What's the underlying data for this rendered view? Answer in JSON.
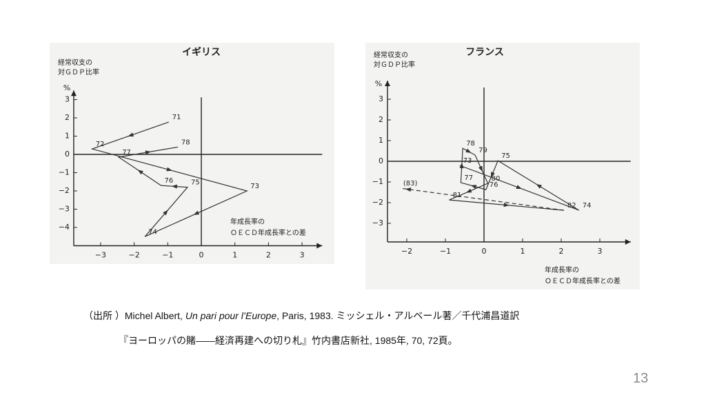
{
  "chart_data": [
    {
      "type": "line",
      "title": "イギリス",
      "y_label": [
        "経常収支の",
        "対ＧＤＰ比率"
      ],
      "y_unit": "%",
      "x_label": [
        "年成長率の",
        "ＯＥＣＤ年成長率との差"
      ],
      "xlim": [
        -3.8,
        3.6
      ],
      "ylim": [
        -5,
        3.5
      ],
      "xticks": [
        {
          "value": -3,
          "label": "−3"
        },
        {
          "value": -2,
          "label": "−2"
        },
        {
          "value": -1,
          "label": "−1"
        },
        0,
        1,
        2,
        3
      ],
      "yticks": [
        3,
        2,
        1,
        0,
        {
          "value": -1,
          "label": "−1"
        },
        {
          "value": -2,
          "label": "−2"
        },
        {
          "value": -3,
          "label": "−3"
        },
        {
          "value": -4,
          "label": "−4"
        }
      ],
      "series": [
        {
          "color": "#333333",
          "style": "solid",
          "point_labels": [
            "71",
            "72",
            "73",
            "74",
            "75",
            "76",
            "77",
            "78"
          ],
          "x": [
            -0.97,
            -3.25,
            1.36,
            -1.68,
            -0.41,
            -1.2,
            -2.46,
            -0.7
          ],
          "values": [
            1.77,
            0.3,
            -2.0,
            -4.5,
            -1.8,
            -1.7,
            -0.15,
            0.4
          ]
        }
      ]
    },
    {
      "type": "line",
      "title": "フランス",
      "y_label": [
        "経常収支の",
        "対ＧＤＰ比率"
      ],
      "y_unit": "%",
      "x_label": [
        "年成長率の",
        "ＯＥＣＤ年成長率との差"
      ],
      "xlim": [
        -2.5,
        3.8
      ],
      "ylim": [
        -3.9,
        3.9
      ],
      "xticks": [
        {
          "value": -2,
          "label": "−2"
        },
        {
          "value": -1,
          "label": "−1"
        },
        0,
        1,
        2,
        3
      ],
      "yticks": [
        3,
        2,
        1,
        0,
        {
          "value": -1,
          "label": "−1"
        },
        {
          "value": -2,
          "label": "−2"
        },
        {
          "value": -3,
          "label": "−3"
        }
      ],
      "series": [
        {
          "color": "#333333",
          "style": "solid",
          "point_labels": [
            "73",
            "74",
            "75",
            "76",
            "77",
            "78",
            "79",
            "80",
            "81",
            "82"
          ],
          "x": [
            -0.63,
            2.46,
            0.36,
            0.05,
            -0.6,
            -0.55,
            -0.23,
            0.1,
            -0.9,
            2.07
          ],
          "values": [
            -0.2,
            -2.37,
            0.03,
            -1.37,
            -1.03,
            0.63,
            0.3,
            -1.07,
            -1.87,
            -2.37
          ]
        },
        {
          "color": "#333333",
          "style": "dashed",
          "point_labels": [
            null,
            "(83)"
          ],
          "x": [
            2.07,
            -2.18
          ],
          "values": [
            -2.37,
            -1.3
          ]
        }
      ]
    }
  ],
  "footer": {
    "line1": {
      "source": "（出所 ）Michel Albert, ",
      "book": "Un pari pour l’Europe",
      "rest": ", Paris, 1983. ミッシェル・アルベール著／千代浦昌道訳"
    },
    "line2": "『ヨーロッパの賭——経済再建への切り札』竹内書店新社, 1985年, 70, 72頁。"
  },
  "page_number": "13"
}
